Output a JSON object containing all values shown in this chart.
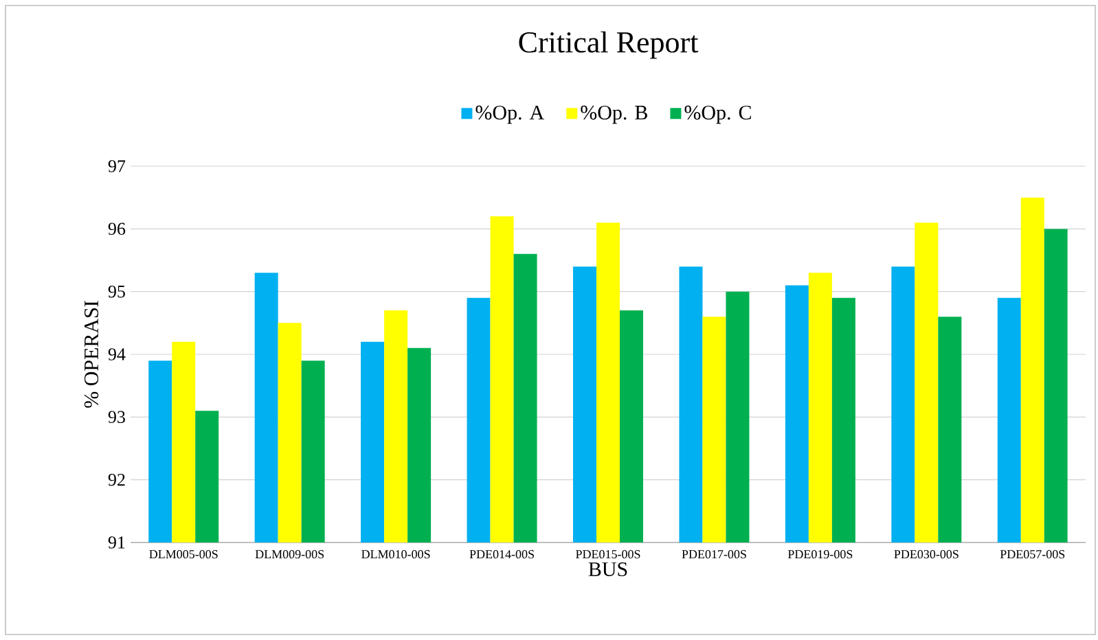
{
  "chart_data": {
    "type": "bar",
    "title": "Critical Report",
    "xlabel": "BUS",
    "ylabel": "% OPERASI",
    "categories": [
      "DLM005-00S",
      "DLM009-00S",
      "DLM010-00S",
      "PDE014-00S",
      "PDE015-00S",
      "PDE017-00S",
      "PDE019-00S",
      "PDE030-00S",
      "PDE057-00S"
    ],
    "series": [
      {
        "name": "%Op. A",
        "color": "#00b0f0",
        "values": [
          93.9,
          95.3,
          94.2,
          94.9,
          95.4,
          95.4,
          95.1,
          95.4,
          94.9
        ]
      },
      {
        "name": "%Op. B",
        "color": "#ffff00",
        "values": [
          94.2,
          94.5,
          94.7,
          96.2,
          96.1,
          94.6,
          95.3,
          96.1,
          96.5
        ]
      },
      {
        "name": "%Op. C",
        "color": "#00b050",
        "values": [
          93.1,
          93.9,
          94.1,
          95.6,
          94.7,
          95.0,
          94.9,
          94.6,
          96.0
        ]
      }
    ],
    "ylim": [
      91,
      97
    ],
    "yticks": [
      91,
      92,
      93,
      94,
      95,
      96,
      97
    ],
    "grid": "y",
    "legend": "top"
  }
}
